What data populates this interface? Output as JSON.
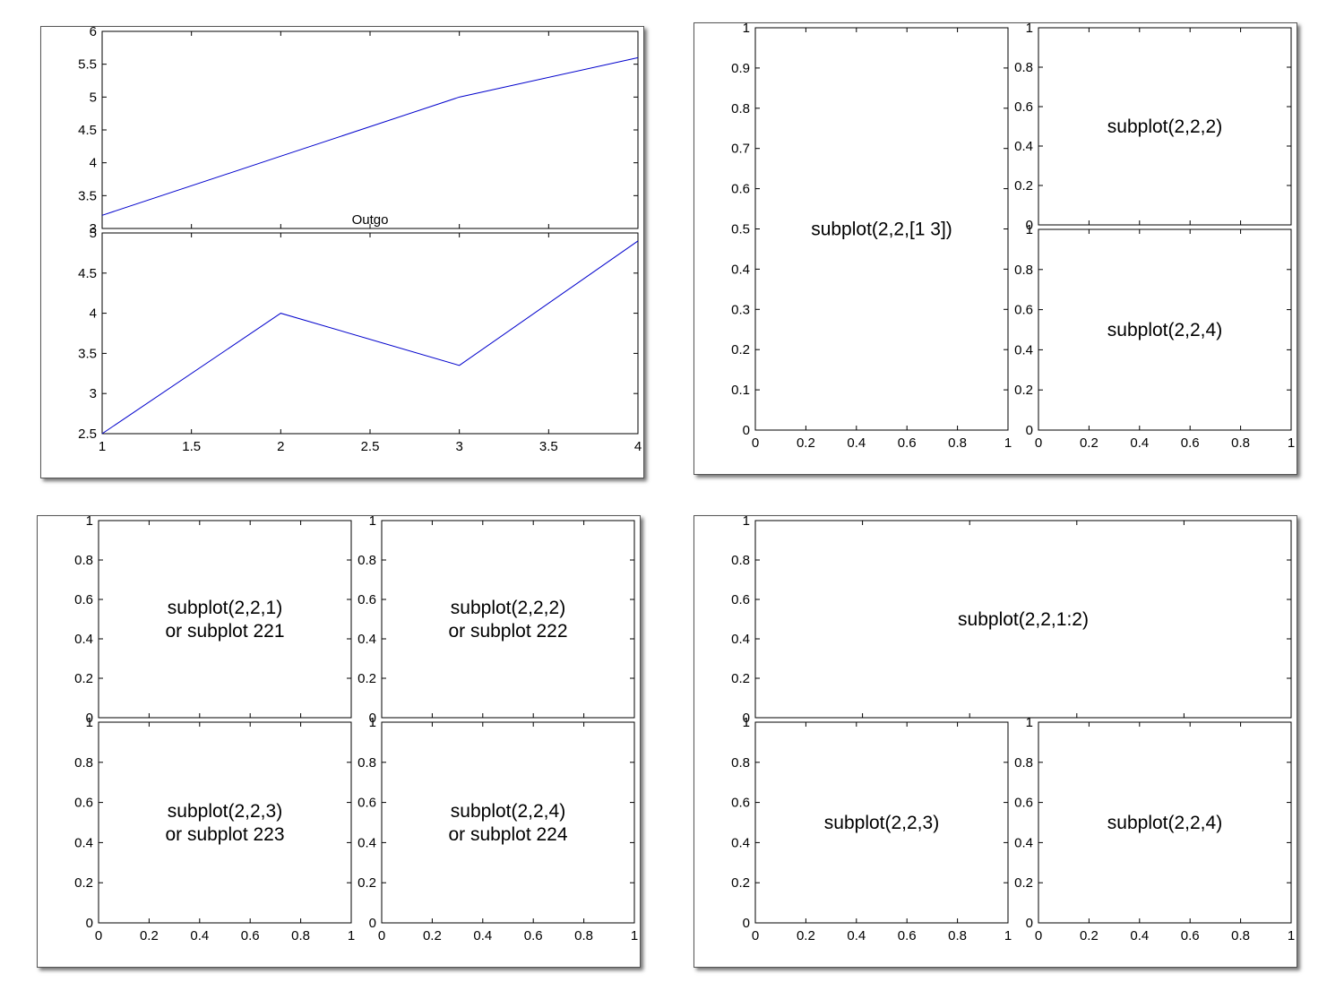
{
  "colors": {
    "line": "#0000cc",
    "axis": "#000000",
    "panel_border": "#555555"
  },
  "chart_data": [
    {
      "panel": "top-left",
      "type": "line",
      "axes": [
        {
          "ylim": [
            3,
            6
          ],
          "yticks": [
            "3",
            "3.5",
            "4",
            "4.5",
            "5",
            "5.5",
            "6"
          ],
          "xlim": [
            1,
            4
          ],
          "xticklabels_visible": false,
          "series": [
            {
              "x": [
                1,
                2,
                3,
                4
              ],
              "y": [
                3.2,
                4.1,
                5.0,
                5.6
              ]
            }
          ]
        },
        {
          "title": "Outgo",
          "ylim": [
            2.5,
            5
          ],
          "yticks": [
            "2.5",
            "3",
            "3.5",
            "4",
            "4.5",
            "5"
          ],
          "xlim": [
            1,
            4
          ],
          "xticks": [
            "1",
            "1.5",
            "2",
            "2.5",
            "3",
            "3.5",
            "4"
          ],
          "series": [
            {
              "x": [
                1,
                2,
                3,
                4
              ],
              "y": [
                2.5,
                4.0,
                3.35,
                4.9
              ]
            }
          ]
        }
      ]
    },
    {
      "panel": "top-right",
      "type": "line",
      "axes": [
        {
          "label": "subplot(2,2,[1 3])",
          "ylim": [
            0,
            1
          ],
          "yticks": [
            "0",
            "0.1",
            "0.2",
            "0.3",
            "0.4",
            "0.5",
            "0.6",
            "0.7",
            "0.8",
            "0.9",
            "1"
          ],
          "xticks": [
            "0",
            "0.2",
            "0.4",
            "0.6",
            "0.8",
            "1"
          ]
        },
        {
          "label": "subplot(2,2,2)",
          "ylim": [
            0,
            1
          ],
          "yticks": [
            "0",
            "0.2",
            "0.4",
            "0.6",
            "0.8",
            "1"
          ],
          "xticklabels_visible": false
        },
        {
          "label": "subplot(2,2,4)",
          "ylim": [
            0,
            1
          ],
          "yticks": [
            "0",
            "0.2",
            "0.4",
            "0.6",
            "0.8",
            "1"
          ],
          "xticks": [
            "0",
            "0.2",
            "0.4",
            "0.6",
            "0.8",
            "1"
          ]
        }
      ]
    },
    {
      "panel": "bottom-left",
      "type": "line",
      "axes": [
        {
          "label": "subplot(2,2,1)\nor subplot 221",
          "ylim": [
            0,
            1
          ],
          "yticks": [
            "0",
            "0.2",
            "0.4",
            "0.6",
            "0.8",
            "1"
          ],
          "xticklabels_visible": false
        },
        {
          "label": "subplot(2,2,2)\nor subplot 222",
          "ylim": [
            0,
            1
          ],
          "yticks": [
            "0",
            "0.2",
            "0.4",
            "0.6",
            "0.8",
            "1"
          ],
          "xticklabels_visible": false
        },
        {
          "label": "subplot(2,2,3)\nor subplot 223",
          "ylim": [
            0,
            1
          ],
          "yticks": [
            "0",
            "0.2",
            "0.4",
            "0.6",
            "0.8",
            "1"
          ],
          "xticks": [
            "0",
            "0.2",
            "0.4",
            "0.6",
            "0.8",
            "1"
          ]
        },
        {
          "label": "subplot(2,2,4)\nor subplot 224",
          "ylim": [
            0,
            1
          ],
          "yticks": [
            "0",
            "0.2",
            "0.4",
            "0.6",
            "0.8",
            "1"
          ],
          "xticks": [
            "0",
            "0.2",
            "0.4",
            "0.6",
            "0.8",
            "1"
          ]
        }
      ]
    },
    {
      "panel": "bottom-right",
      "type": "line",
      "axes": [
        {
          "label": "subplot(2,2,1:2)",
          "ylim": [
            0,
            1
          ],
          "yticks": [
            "0",
            "0.2",
            "0.4",
            "0.6",
            "0.8",
            "1"
          ],
          "xticklabels_visible": false
        },
        {
          "label": "subplot(2,2,3)",
          "ylim": [
            0,
            1
          ],
          "yticks": [
            "0",
            "0.2",
            "0.4",
            "0.6",
            "0.8",
            "1"
          ],
          "xticks": [
            "0",
            "0.2",
            "0.4",
            "0.6",
            "0.8",
            "1"
          ]
        },
        {
          "label": "subplot(2,2,4)",
          "ylim": [
            0,
            1
          ],
          "yticks": [
            "0",
            "0.2",
            "0.4",
            "0.6",
            "0.8",
            "1"
          ],
          "xticks": [
            "0",
            "0.2",
            "0.4",
            "0.6",
            "0.8",
            "1"
          ]
        }
      ]
    }
  ]
}
